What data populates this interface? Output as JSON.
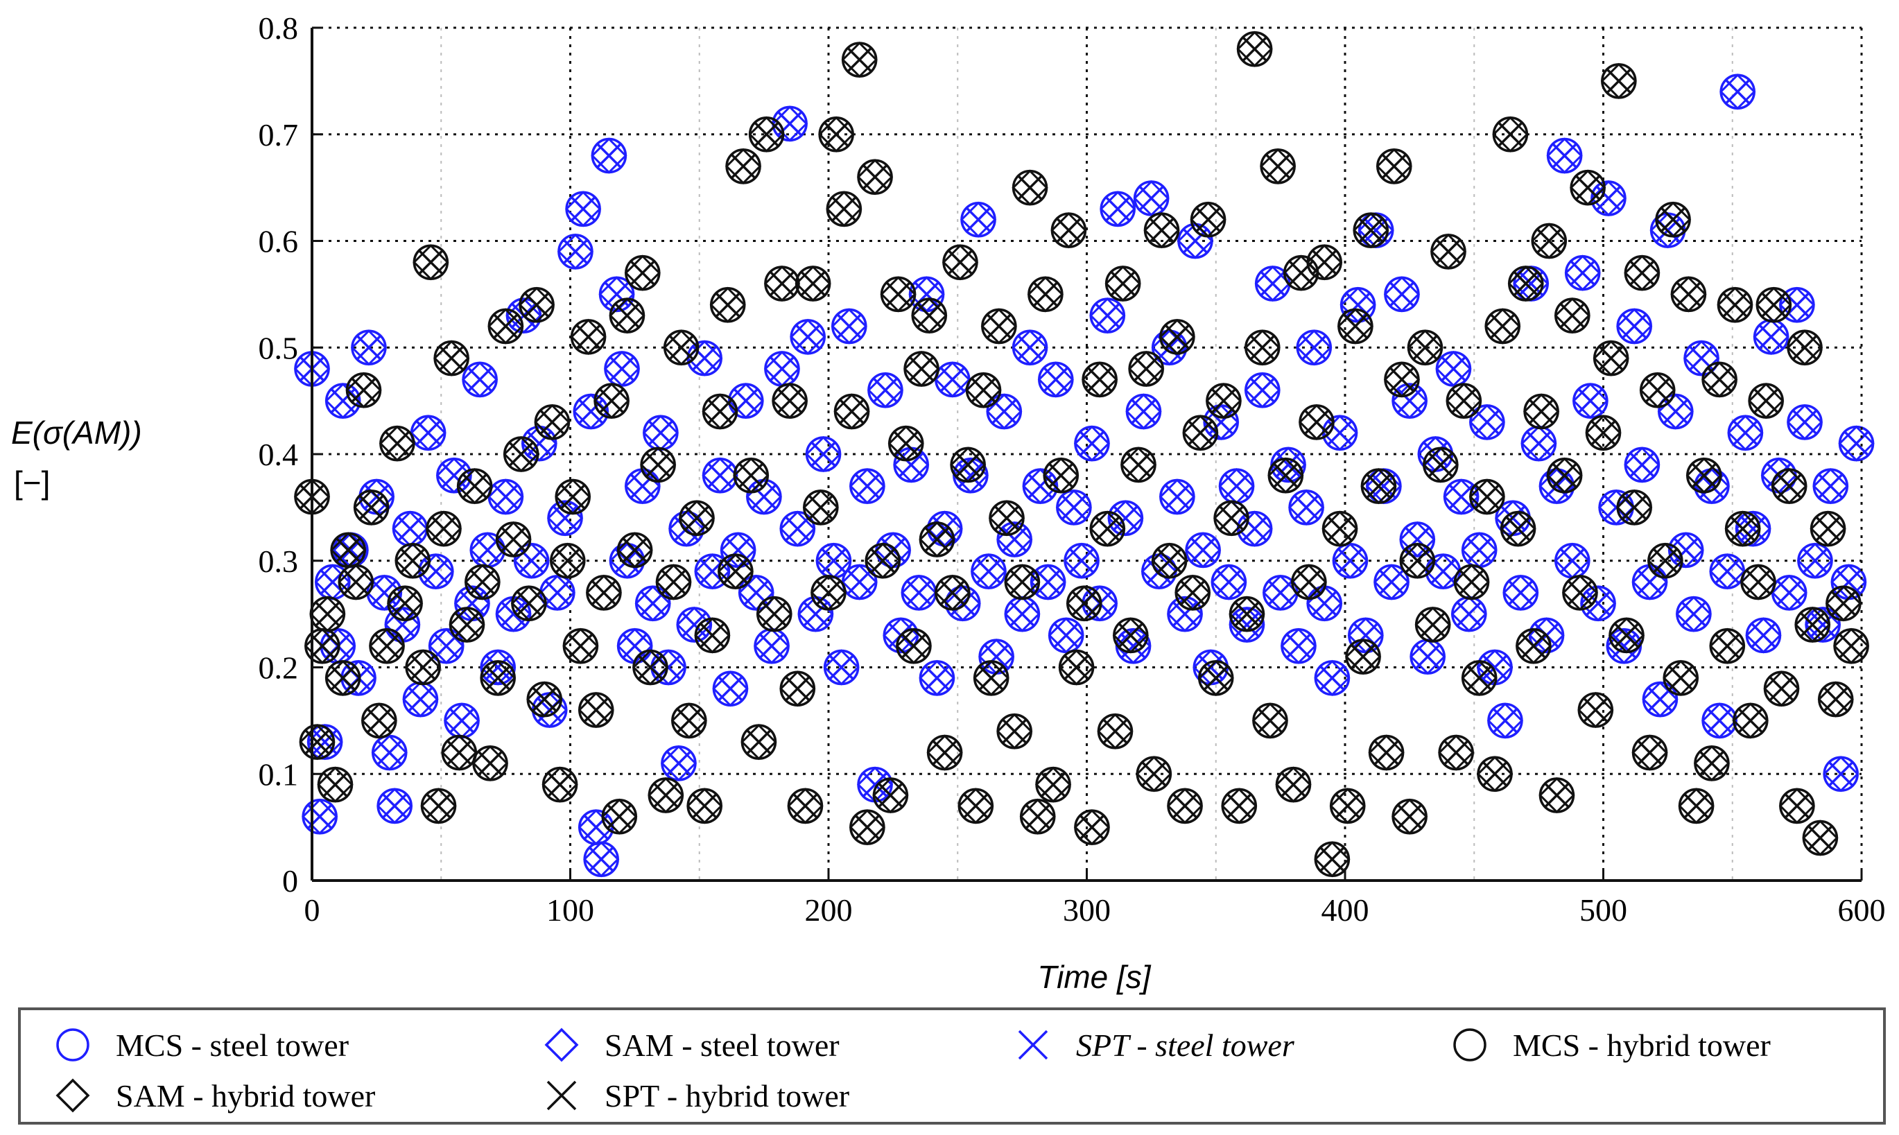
{
  "chart_data": {
    "type": "scatter",
    "title": "",
    "xlabel": "Time [s]",
    "ylabel_line1": "E(σ(AM))",
    "ylabel_line2": "[−]",
    "xlim": [
      0,
      600
    ],
    "ylim": [
      0,
      0.8
    ],
    "x_ticks": [
      0,
      100,
      200,
      300,
      400,
      500,
      600
    ],
    "y_ticks": [
      0,
      0.1,
      0.2,
      0.3,
      0.4,
      0.5,
      0.6,
      0.7,
      0.8
    ],
    "x_tick_labels": [
      "0",
      "100",
      "200",
      "300",
      "400",
      "500",
      "600"
    ],
    "y_tick_labels": [
      "0",
      "0.1",
      "0.2",
      "0.3",
      "0.4",
      "0.5",
      "0.6",
      "0.7",
      "0.8"
    ],
    "grid": true,
    "legend_position": "bottom",
    "colors": {
      "steel": "#1f1fff",
      "hybrid": "#111111",
      "frame": "#555555"
    },
    "series": [
      {
        "name": "MCS - steel tower",
        "marker": "circle",
        "color": "#1f1fff",
        "italic": false
      },
      {
        "name": "SAM - steel tower",
        "marker": "diamond",
        "color": "#1f1fff",
        "italic": false
      },
      {
        "name": "SPT - steel tower",
        "marker": "x",
        "color": "#1f1fff",
        "italic": true
      },
      {
        "name": "MCS - hybrid tower",
        "marker": "circle",
        "color": "#111111",
        "italic": false
      },
      {
        "name": "SAM - hybrid tower",
        "marker": "diamond",
        "color": "#111111",
        "italic": false
      },
      {
        "name": "SPT - hybrid tower",
        "marker": "x",
        "color": "#111111",
        "italic": false
      }
    ],
    "steel_points": [
      [
        0,
        0.48
      ],
      [
        3,
        0.06
      ],
      [
        5,
        0.13
      ],
      [
        8,
        0.28
      ],
      [
        10,
        0.22
      ],
      [
        12,
        0.45
      ],
      [
        15,
        0.31
      ],
      [
        18,
        0.19
      ],
      [
        22,
        0.5
      ],
      [
        25,
        0.36
      ],
      [
        28,
        0.27
      ],
      [
        30,
        0.12
      ],
      [
        32,
        0.07
      ],
      [
        35,
        0.24
      ],
      [
        38,
        0.33
      ],
      [
        42,
        0.17
      ],
      [
        45,
        0.42
      ],
      [
        48,
        0.29
      ],
      [
        52,
        0.22
      ],
      [
        55,
        0.38
      ],
      [
        58,
        0.15
      ],
      [
        62,
        0.26
      ],
      [
        65,
        0.47
      ],
      [
        68,
        0.31
      ],
      [
        72,
        0.2
      ],
      [
        75,
        0.36
      ],
      [
        78,
        0.25
      ],
      [
        82,
        0.53
      ],
      [
        85,
        0.3
      ],
      [
        88,
        0.41
      ],
      [
        92,
        0.16
      ],
      [
        95,
        0.27
      ],
      [
        98,
        0.34
      ],
      [
        102,
        0.59
      ],
      [
        105,
        0.63
      ],
      [
        108,
        0.44
      ],
      [
        110,
        0.05
      ],
      [
        112,
        0.02
      ],
      [
        115,
        0.68
      ],
      [
        118,
        0.55
      ],
      [
        120,
        0.48
      ],
      [
        122,
        0.3
      ],
      [
        125,
        0.22
      ],
      [
        128,
        0.37
      ],
      [
        132,
        0.26
      ],
      [
        135,
        0.42
      ],
      [
        138,
        0.2
      ],
      [
        142,
        0.11
      ],
      [
        145,
        0.33
      ],
      [
        148,
        0.24
      ],
      [
        152,
        0.49
      ],
      [
        155,
        0.29
      ],
      [
        158,
        0.38
      ],
      [
        162,
        0.18
      ],
      [
        165,
        0.31
      ],
      [
        168,
        0.45
      ],
      [
        172,
        0.27
      ],
      [
        175,
        0.36
      ],
      [
        178,
        0.22
      ],
      [
        182,
        0.48
      ],
      [
        185,
        0.71
      ],
      [
        188,
        0.33
      ],
      [
        192,
        0.51
      ],
      [
        195,
        0.25
      ],
      [
        198,
        0.4
      ],
      [
        202,
        0.3
      ],
      [
        205,
        0.2
      ],
      [
        208,
        0.52
      ],
      [
        212,
        0.28
      ],
      [
        215,
        0.37
      ],
      [
        218,
        0.09
      ],
      [
        222,
        0.46
      ],
      [
        225,
        0.31
      ],
      [
        228,
        0.23
      ],
      [
        232,
        0.39
      ],
      [
        235,
        0.27
      ],
      [
        238,
        0.55
      ],
      [
        242,
        0.19
      ],
      [
        245,
        0.33
      ],
      [
        248,
        0.47
      ],
      [
        252,
        0.26
      ],
      [
        255,
        0.38
      ],
      [
        258,
        0.62
      ],
      [
        262,
        0.29
      ],
      [
        265,
        0.21
      ],
      [
        268,
        0.44
      ],
      [
        272,
        0.32
      ],
      [
        275,
        0.25
      ],
      [
        278,
        0.5
      ],
      [
        282,
        0.37
      ],
      [
        285,
        0.28
      ],
      [
        288,
        0.47
      ],
      [
        292,
        0.23
      ],
      [
        295,
        0.35
      ],
      [
        298,
        0.3
      ],
      [
        302,
        0.41
      ],
      [
        305,
        0.26
      ],
      [
        308,
        0.53
      ],
      [
        312,
        0.63
      ],
      [
        315,
        0.34
      ],
      [
        318,
        0.22
      ],
      [
        322,
        0.44
      ],
      [
        325,
        0.64
      ],
      [
        328,
        0.29
      ],
      [
        332,
        0.5
      ],
      [
        335,
        0.36
      ],
      [
        338,
        0.25
      ],
      [
        342,
        0.6
      ],
      [
        345,
        0.31
      ],
      [
        348,
        0.2
      ],
      [
        352,
        0.43
      ],
      [
        355,
        0.28
      ],
      [
        358,
        0.37
      ],
      [
        362,
        0.24
      ],
      [
        365,
        0.33
      ],
      [
        368,
        0.46
      ],
      [
        372,
        0.56
      ],
      [
        375,
        0.27
      ],
      [
        378,
        0.39
      ],
      [
        382,
        0.22
      ],
      [
        385,
        0.35
      ],
      [
        388,
        0.5
      ],
      [
        392,
        0.26
      ],
      [
        395,
        0.19
      ],
      [
        398,
        0.42
      ],
      [
        402,
        0.3
      ],
      [
        405,
        0.54
      ],
      [
        408,
        0.23
      ],
      [
        412,
        0.61
      ],
      [
        415,
        0.37
      ],
      [
        418,
        0.28
      ],
      [
        422,
        0.55
      ],
      [
        425,
        0.45
      ],
      [
        428,
        0.32
      ],
      [
        432,
        0.21
      ],
      [
        435,
        0.4
      ],
      [
        438,
        0.29
      ],
      [
        442,
        0.48
      ],
      [
        445,
        0.36
      ],
      [
        448,
        0.25
      ],
      [
        452,
        0.31
      ],
      [
        455,
        0.43
      ],
      [
        458,
        0.2
      ],
      [
        462,
        0.15
      ],
      [
        465,
        0.34
      ],
      [
        468,
        0.27
      ],
      [
        472,
        0.56
      ],
      [
        475,
        0.41
      ],
      [
        478,
        0.23
      ],
      [
        482,
        0.37
      ],
      [
        485,
        0.68
      ],
      [
        488,
        0.3
      ],
      [
        492,
        0.57
      ],
      [
        495,
        0.45
      ],
      [
        498,
        0.26
      ],
      [
        502,
        0.64
      ],
      [
        505,
        0.35
      ],
      [
        508,
        0.22
      ],
      [
        512,
        0.52
      ],
      [
        515,
        0.39
      ],
      [
        518,
        0.28
      ],
      [
        522,
        0.17
      ],
      [
        525,
        0.61
      ],
      [
        528,
        0.44
      ],
      [
        532,
        0.31
      ],
      [
        535,
        0.25
      ],
      [
        538,
        0.49
      ],
      [
        542,
        0.37
      ],
      [
        545,
        0.15
      ],
      [
        548,
        0.29
      ],
      [
        552,
        0.74
      ],
      [
        555,
        0.42
      ],
      [
        558,
        0.33
      ],
      [
        562,
        0.23
      ],
      [
        565,
        0.51
      ],
      [
        568,
        0.38
      ],
      [
        572,
        0.27
      ],
      [
        575,
        0.54
      ],
      [
        578,
        0.43
      ],
      [
        582,
        0.3
      ],
      [
        585,
        0.24
      ],
      [
        588,
        0.37
      ],
      [
        592,
        0.1
      ],
      [
        595,
        0.28
      ],
      [
        598,
        0.41
      ]
    ],
    "hybrid_points": [
      [
        0,
        0.36
      ],
      [
        2,
        0.13
      ],
      [
        4,
        0.22
      ],
      [
        6,
        0.25
      ],
      [
        9,
        0.09
      ],
      [
        12,
        0.19
      ],
      [
        14,
        0.31
      ],
      [
        17,
        0.28
      ],
      [
        20,
        0.46
      ],
      [
        23,
        0.35
      ],
      [
        26,
        0.15
      ],
      [
        29,
        0.22
      ],
      [
        33,
        0.41
      ],
      [
        36,
        0.26
      ],
      [
        39,
        0.3
      ],
      [
        43,
        0.2
      ],
      [
        46,
        0.58
      ],
      [
        49,
        0.07
      ],
      [
        51,
        0.33
      ],
      [
        54,
        0.49
      ],
      [
        57,
        0.12
      ],
      [
        60,
        0.24
      ],
      [
        63,
        0.37
      ],
      [
        66,
        0.28
      ],
      [
        69,
        0.11
      ],
      [
        72,
        0.19
      ],
      [
        75,
        0.52
      ],
      [
        78,
        0.32
      ],
      [
        81,
        0.4
      ],
      [
        84,
        0.26
      ],
      [
        87,
        0.54
      ],
      [
        90,
        0.17
      ],
      [
        93,
        0.43
      ],
      [
        96,
        0.09
      ],
      [
        99,
        0.3
      ],
      [
        101,
        0.36
      ],
      [
        104,
        0.22
      ],
      [
        107,
        0.51
      ],
      [
        110,
        0.16
      ],
      [
        113,
        0.27
      ],
      [
        116,
        0.45
      ],
      [
        119,
        0.06
      ],
      [
        122,
        0.53
      ],
      [
        125,
        0.31
      ],
      [
        128,
        0.57
      ],
      [
        131,
        0.2
      ],
      [
        134,
        0.39
      ],
      [
        137,
        0.08
      ],
      [
        140,
        0.28
      ],
      [
        143,
        0.5
      ],
      [
        146,
        0.15
      ],
      [
        149,
        0.34
      ],
      [
        152,
        0.07
      ],
      [
        155,
        0.23
      ],
      [
        158,
        0.44
      ],
      [
        161,
        0.54
      ],
      [
        164,
        0.29
      ],
      [
        167,
        0.67
      ],
      [
        170,
        0.38
      ],
      [
        173,
        0.13
      ],
      [
        176,
        0.7
      ],
      [
        179,
        0.25
      ],
      [
        182,
        0.56
      ],
      [
        185,
        0.45
      ],
      [
        188,
        0.18
      ],
      [
        191,
        0.07
      ],
      [
        194,
        0.56
      ],
      [
        197,
        0.35
      ],
      [
        200,
        0.27
      ],
      [
        203,
        0.7
      ],
      [
        206,
        0.63
      ],
      [
        209,
        0.44
      ],
      [
        212,
        0.77
      ],
      [
        215,
        0.05
      ],
      [
        218,
        0.66
      ],
      [
        221,
        0.3
      ],
      [
        224,
        0.08
      ],
      [
        227,
        0.55
      ],
      [
        230,
        0.41
      ],
      [
        233,
        0.22
      ],
      [
        236,
        0.48
      ],
      [
        239,
        0.53
      ],
      [
        242,
        0.32
      ],
      [
        245,
        0.12
      ],
      [
        248,
        0.27
      ],
      [
        251,
        0.58
      ],
      [
        254,
        0.39
      ],
      [
        257,
        0.07
      ],
      [
        260,
        0.46
      ],
      [
        263,
        0.19
      ],
      [
        266,
        0.52
      ],
      [
        269,
        0.34
      ],
      [
        272,
        0.14
      ],
      [
        275,
        0.28
      ],
      [
        278,
        0.65
      ],
      [
        281,
        0.06
      ],
      [
        284,
        0.55
      ],
      [
        287,
        0.09
      ],
      [
        290,
        0.38
      ],
      [
        293,
        0.61
      ],
      [
        296,
        0.2
      ],
      [
        299,
        0.26
      ],
      [
        302,
        0.05
      ],
      [
        305,
        0.47
      ],
      [
        308,
        0.33
      ],
      [
        311,
        0.14
      ],
      [
        314,
        0.56
      ],
      [
        317,
        0.23
      ],
      [
        320,
        0.39
      ],
      [
        323,
        0.48
      ],
      [
        326,
        0.1
      ],
      [
        329,
        0.61
      ],
      [
        332,
        0.3
      ],
      [
        335,
        0.51
      ],
      [
        338,
        0.07
      ],
      [
        341,
        0.27
      ],
      [
        344,
        0.42
      ],
      [
        347,
        0.62
      ],
      [
        350,
        0.19
      ],
      [
        353,
        0.45
      ],
      [
        356,
        0.34
      ],
      [
        359,
        0.07
      ],
      [
        362,
        0.25
      ],
      [
        365,
        0.78
      ],
      [
        368,
        0.5
      ],
      [
        371,
        0.15
      ],
      [
        374,
        0.67
      ],
      [
        377,
        0.38
      ],
      [
        380,
        0.09
      ],
      [
        383,
        0.57
      ],
      [
        386,
        0.28
      ],
      [
        389,
        0.43
      ],
      [
        392,
        0.58
      ],
      [
        395,
        0.02
      ],
      [
        398,
        0.33
      ],
      [
        401,
        0.07
      ],
      [
        404,
        0.52
      ],
      [
        407,
        0.21
      ],
      [
        410,
        0.61
      ],
      [
        413,
        0.37
      ],
      [
        416,
        0.12
      ],
      [
        419,
        0.67
      ],
      [
        422,
        0.47
      ],
      [
        425,
        0.06
      ],
      [
        428,
        0.3
      ],
      [
        431,
        0.5
      ],
      [
        434,
        0.24
      ],
      [
        437,
        0.39
      ],
      [
        440,
        0.59
      ],
      [
        443,
        0.12
      ],
      [
        446,
        0.45
      ],
      [
        449,
        0.28
      ],
      [
        452,
        0.19
      ],
      [
        455,
        0.36
      ],
      [
        458,
        0.1
      ],
      [
        461,
        0.52
      ],
      [
        464,
        0.7
      ],
      [
        467,
        0.33
      ],
      [
        470,
        0.56
      ],
      [
        473,
        0.22
      ],
      [
        476,
        0.44
      ],
      [
        479,
        0.6
      ],
      [
        482,
        0.08
      ],
      [
        485,
        0.38
      ],
      [
        488,
        0.53
      ],
      [
        491,
        0.27
      ],
      [
        494,
        0.65
      ],
      [
        497,
        0.16
      ],
      [
        500,
        0.42
      ],
      [
        503,
        0.49
      ],
      [
        506,
        0.75
      ],
      [
        509,
        0.23
      ],
      [
        512,
        0.35
      ],
      [
        515,
        0.57
      ],
      [
        518,
        0.12
      ],
      [
        521,
        0.46
      ],
      [
        524,
        0.3
      ],
      [
        527,
        0.62
      ],
      [
        530,
        0.19
      ],
      [
        533,
        0.55
      ],
      [
        536,
        0.07
      ],
      [
        539,
        0.38
      ],
      [
        542,
        0.11
      ],
      [
        545,
        0.47
      ],
      [
        548,
        0.22
      ],
      [
        551,
        0.54
      ],
      [
        554,
        0.33
      ],
      [
        557,
        0.15
      ],
      [
        560,
        0.28
      ],
      [
        563,
        0.45
      ],
      [
        566,
        0.54
      ],
      [
        569,
        0.18
      ],
      [
        572,
        0.37
      ],
      [
        575,
        0.07
      ],
      [
        578,
        0.5
      ],
      [
        581,
        0.24
      ],
      [
        584,
        0.04
      ],
      [
        587,
        0.33
      ],
      [
        590,
        0.17
      ],
      [
        593,
        0.26
      ],
      [
        596,
        0.22
      ]
    ]
  }
}
